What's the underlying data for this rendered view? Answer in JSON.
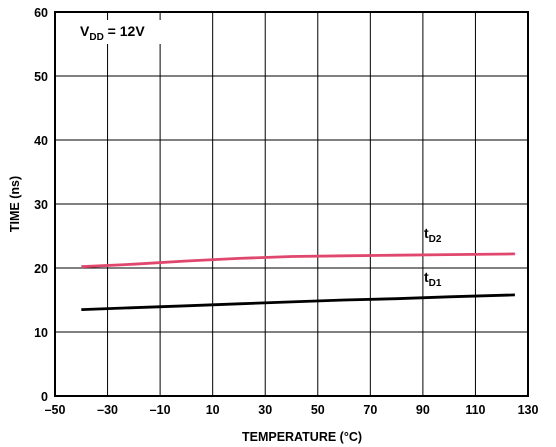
{
  "chart_data": {
    "type": "line",
    "title": "",
    "xlabel": "TEMPERATURE (°C)",
    "ylabel": "TIME (ns)",
    "xlim": [
      -50,
      130
    ],
    "ylim": [
      0,
      60
    ],
    "x_ticks": [
      -50,
      -30,
      -10,
      10,
      30,
      50,
      70,
      90,
      110,
      130
    ],
    "x_tick_labels": [
      "–50",
      "–30",
      "–10",
      "10",
      "30",
      "50",
      "70",
      "90",
      "110",
      "130"
    ],
    "y_ticks": [
      0,
      10,
      20,
      30,
      40,
      50,
      60
    ],
    "y_tick_labels": [
      "0",
      "10",
      "20",
      "30",
      "40",
      "50",
      "60"
    ],
    "grid": true,
    "legend": "none",
    "annotation": {
      "main": "V",
      "sub": "DD",
      "rest": " = 12V"
    },
    "series": [
      {
        "name": "tD2",
        "label_main": "t",
        "label_sub": "D2",
        "color": "#e0476c",
        "x": [
          -40,
          -20,
          0,
          20,
          40,
          60,
          80,
          100,
          125
        ],
        "y": [
          20.2,
          20.6,
          21.1,
          21.5,
          21.8,
          21.9,
          22.0,
          22.1,
          22.2
        ]
      },
      {
        "name": "tD1",
        "label_main": "t",
        "label_sub": "D1",
        "color": "#000000",
        "x": [
          -40,
          -20,
          0,
          20,
          40,
          60,
          80,
          100,
          125
        ],
        "y": [
          13.5,
          13.8,
          14.1,
          14.4,
          14.7,
          15.0,
          15.2,
          15.5,
          15.8
        ]
      }
    ]
  }
}
